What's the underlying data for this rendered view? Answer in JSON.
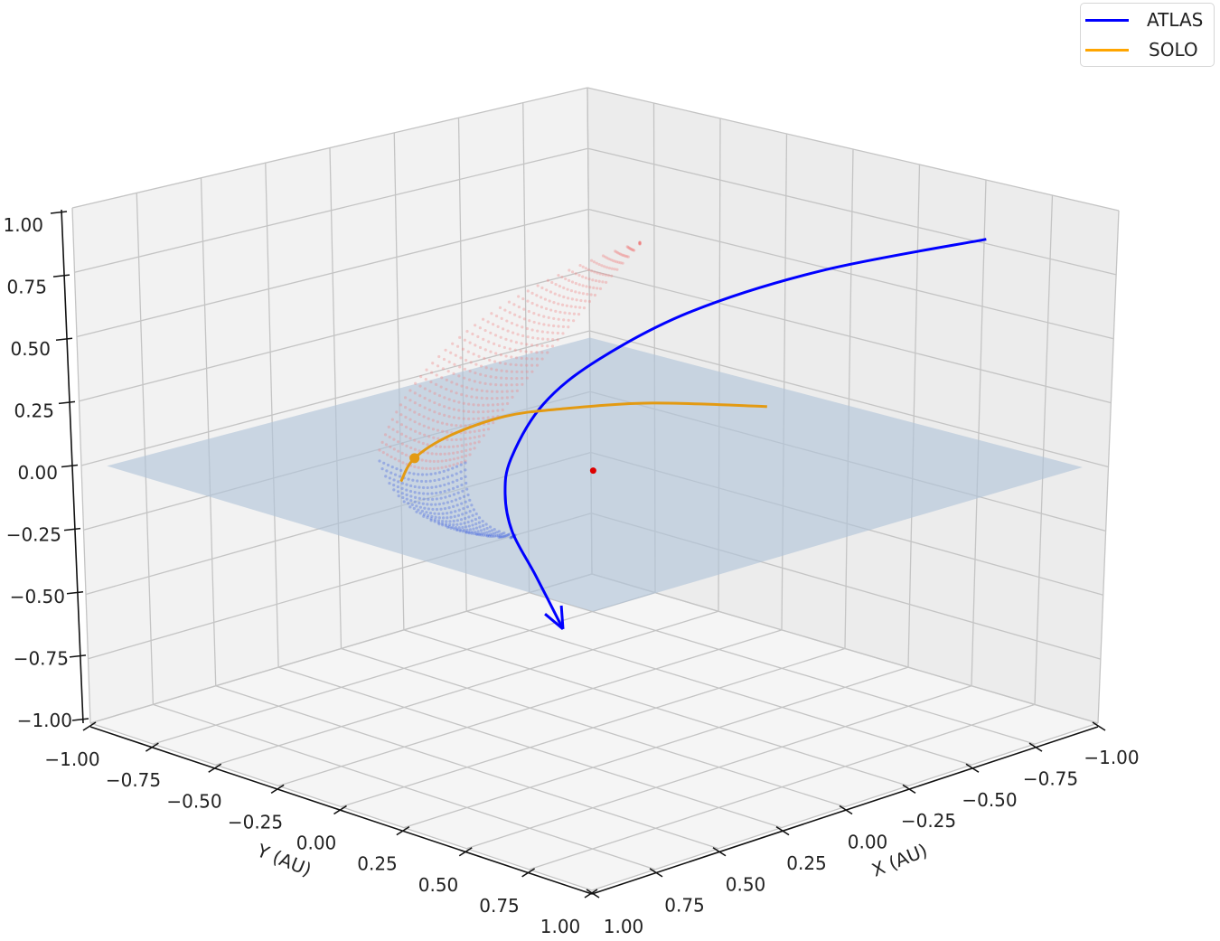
{
  "chart_data": {
    "type": "3d-line",
    "title": "",
    "xlabel": "X (AU)",
    "ylabel": "Y (AU)",
    "zlabel": "",
    "xlim": [
      -1,
      1
    ],
    "ylim": [
      -1,
      1
    ],
    "zlim": [
      -1,
      1
    ],
    "grid": true,
    "legend_placement": "top-right",
    "ticks": {
      "x": [
        "−1.00",
        "−0.75",
        "−0.50",
        "−0.25",
        "0.00",
        "0.25",
        "0.50",
        "0.75",
        "1.00"
      ],
      "y": [
        "−1.00",
        "−0.75",
        "−0.50",
        "−0.25",
        "0.00",
        "0.25",
        "0.50",
        "0.75",
        "1.00"
      ],
      "z": [
        "−1.00",
        "−0.75",
        "−0.50",
        "−0.25",
        "0.00",
        "0.25",
        "0.50",
        "0.75",
        "1.00"
      ]
    },
    "series": [
      {
        "name": "ATLAS",
        "color": "#0000ff",
        "end_marker": "arrow",
        "points": [
          [
            -0.739,
            0.761,
            0.9
          ],
          [
            -0.495,
            0.387,
            0.75
          ],
          [
            -0.228,
            0.152,
            0.6
          ],
          [
            0.022,
            0.043,
            0.45
          ],
          [
            0.172,
            -0.021,
            0.3
          ],
          [
            0.287,
            -0.032,
            0.12
          ],
          [
            0.334,
            -0.01,
            0.0
          ],
          [
            0.366,
            0.049,
            -0.12
          ],
          [
            0.384,
            0.157,
            -0.25
          ],
          [
            0.427,
            0.308,
            -0.4
          ]
        ]
      },
      {
        "name": "SOLO",
        "color": "#ffa500",
        "line_color": "#e39a12",
        "current_position": [
          0.267,
          -0.429,
          0.0
        ],
        "points": [
          [
            0.456,
            -0.294,
            0.0
          ],
          [
            0.267,
            -0.429,
            0.0
          ],
          [
            0.034,
            -0.52,
            0.0
          ],
          [
            -0.208,
            -0.549,
            0.0
          ],
          [
            -0.37,
            -0.495,
            0.0
          ],
          [
            -0.592,
            -0.359,
            0.0
          ],
          [
            -0.789,
            -0.108,
            0.0
          ]
        ]
      }
    ],
    "sun": {
      "position": [
        0,
        0,
        0
      ],
      "color": "#dd0000"
    },
    "plane": {
      "z": 0,
      "extent": 0.95,
      "color": "#b0c4d8"
    },
    "point_cloud": {
      "above_plane_color": "#f08080",
      "below_plane_color": "#4060e0"
    }
  },
  "legend": {
    "items": [
      {
        "label": "ATLAS",
        "color": "#0000ff"
      },
      {
        "label": "SOLO",
        "color": "#ffa500"
      }
    ]
  }
}
